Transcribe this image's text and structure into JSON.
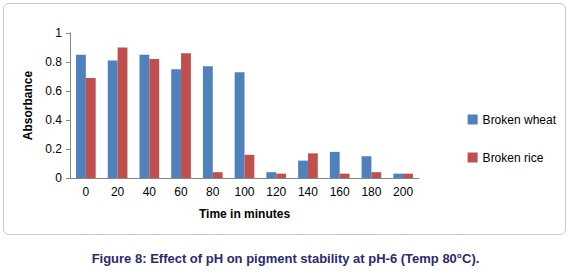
{
  "chart_data": {
    "type": "bar",
    "title": "Figure 8: Effect of pH on pigment stability at pH-6 (Temp 80°C).",
    "x_label": "Time in minutes",
    "y_label": "Absorbance",
    "categories": [
      "0",
      "20",
      "40",
      "60",
      "80",
      "100",
      "120",
      "140",
      "160",
      "180",
      "200"
    ],
    "series": [
      {
        "name": "Broken wheat",
        "color": "#4f81bd",
        "values": [
          0.85,
          0.81,
          0.85,
          0.75,
          0.77,
          0.73,
          0.04,
          0.12,
          0.18,
          0.15,
          0.03
        ]
      },
      {
        "name": "Broken rice",
        "color": "#c0504d",
        "values": [
          0.69,
          0.9,
          0.82,
          0.86,
          0.04,
          0.16,
          0.03,
          0.17,
          0.03,
          0.04,
          0.03
        ]
      }
    ],
    "ylim": [
      0,
      1
    ],
    "yticks": [
      0,
      0.2,
      0.4,
      0.6,
      0.8,
      1
    ],
    "grid": false,
    "legend": "right"
  }
}
